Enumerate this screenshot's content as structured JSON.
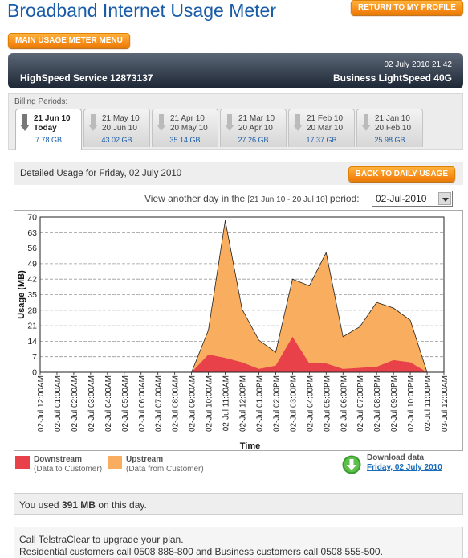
{
  "header": {
    "title": "Broadband Internet Usage Meter",
    "return_button": "RETURN TO MY PROFILE",
    "menu_button": "MAIN USAGE METER MENU"
  },
  "service": {
    "datetime": "02 July 2010 21:42",
    "name": "HighSpeed Service 12873137",
    "plan": "Business LightSpeed 40G"
  },
  "billing": {
    "label": "Billing Periods:",
    "periods": [
      {
        "line1": "21 Jun 10",
        "line2": "Today",
        "usage": "7.78 GB",
        "active": true
      },
      {
        "line1": "21 May 10",
        "line2": "20 Jun 10",
        "usage": "43.02 GB"
      },
      {
        "line1": "21 Apr 10",
        "line2": "20 May 10",
        "usage": "35.14 GB"
      },
      {
        "line1": "21 Mar 10",
        "line2": "20 Apr 10",
        "usage": "27.26 GB"
      },
      {
        "line1": "21 Feb 10",
        "line2": "20 Mar 10",
        "usage": "17.37 GB"
      },
      {
        "line1": "21 Jan 10",
        "line2": "20 Feb 10",
        "usage": "25.98 GB"
      }
    ]
  },
  "detail": {
    "title": "Detailed Usage for Friday, 02 July 2010",
    "back_button": "BACK TO DAILY USAGE",
    "view_prefix": "View another day in the",
    "range": "[21 Jun 10 - 20 Jul 10]",
    "view_suffix": "period:",
    "selected_date": "02-Jul-2010"
  },
  "chart_data": {
    "type": "area",
    "xlabel": "Time",
    "ylabel": "Usage (MB)",
    "ylim": [
      0,
      70
    ],
    "yticks": [
      0,
      7,
      14,
      21,
      28,
      35,
      42,
      49,
      56,
      63,
      70
    ],
    "grid": true,
    "x": [
      "02-Jul 12:00AM",
      "02-Jul 01:00AM",
      "02-Jul 02:00AM",
      "02-Jul 03:00AM",
      "02-Jul 04:00AM",
      "02-Jul 05:00AM",
      "02-Jul 06:00AM",
      "02-Jul 07:00AM",
      "02-Jul 08:00AM",
      "02-Jul 09:00AM",
      "02-Jul 10:00AM",
      "02-Jul 11:00AM",
      "02-Jul 12:00PM",
      "02-Jul 01:00PM",
      "02-Jul 02:00PM",
      "02-Jul 03:00PM",
      "02-Jul 04:00PM",
      "02-Jul 05:00PM",
      "02-Jul 06:00PM",
      "02-Jul 07:00PM",
      "02-Jul 08:00PM",
      "02-Jul 09:00PM",
      "02-Jul 10:00PM",
      "02-Jul 11:00PM",
      "03-Jul 12:00AM"
    ],
    "series": [
      {
        "name": "Downstream",
        "sublabel": "(Data to Customer)",
        "color": "#e8414a",
        "values": [
          0,
          0,
          0,
          0,
          0,
          0,
          0,
          0,
          0,
          0,
          8,
          6.5,
          4.5,
          1.5,
          3,
          16,
          4,
          4,
          1.5,
          2,
          2.5,
          5.5,
          4.5,
          0,
          0
        ]
      },
      {
        "name": "Upstream",
        "sublabel": "(Data from Customer)",
        "color": "#f9ad5e",
        "values": [
          0,
          0,
          0,
          0,
          0,
          0,
          0,
          0,
          0,
          0,
          11,
          62,
          24,
          13,
          6,
          26,
          35,
          50,
          14.5,
          18.5,
          29,
          23.5,
          19,
          0,
          0
        ]
      }
    ]
  },
  "download": {
    "title": "Download data",
    "link": "Friday, 02 July 2010"
  },
  "usage_summary": {
    "prefix": "You used",
    "amount": "391 MB",
    "suffix": "on this day."
  },
  "upgrade": {
    "line1": "Call TelstraClear to upgrade your plan.",
    "line2": "Residential customers call 0508 888-800 and Business customers call 0508 555-500."
  }
}
